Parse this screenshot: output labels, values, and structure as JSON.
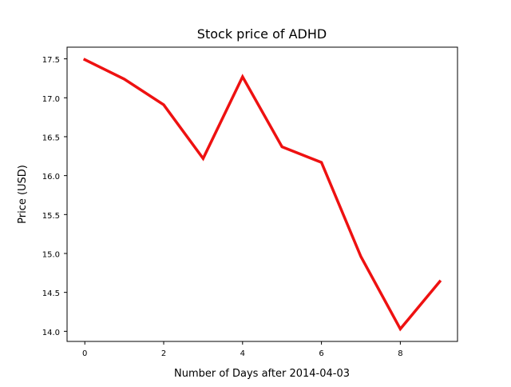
{
  "chart_data": {
    "type": "line",
    "title": "Stock price of ADHD",
    "xlabel": "Number of Days after 2014-04-03",
    "ylabel": "Price (USD)",
    "x": [
      0,
      1,
      2,
      3,
      4,
      5,
      6,
      7,
      8,
      9
    ],
    "series": [
      {
        "values": [
          17.49,
          17.24,
          16.91,
          16.22,
          17.27,
          16.37,
          16.17,
          14.96,
          14.03,
          14.64
        ]
      }
    ],
    "xlim": [
      -0.45,
      9.45
    ],
    "ylim": [
      13.87,
      17.65
    ],
    "x_ticks": [
      0,
      2,
      4,
      6,
      8
    ],
    "y_ticks": [
      "14.0",
      "14.5",
      "15.0",
      "15.5",
      "16.0",
      "16.5",
      "17.0",
      "17.5"
    ],
    "grid": false,
    "line_color": "#ee1111"
  }
}
